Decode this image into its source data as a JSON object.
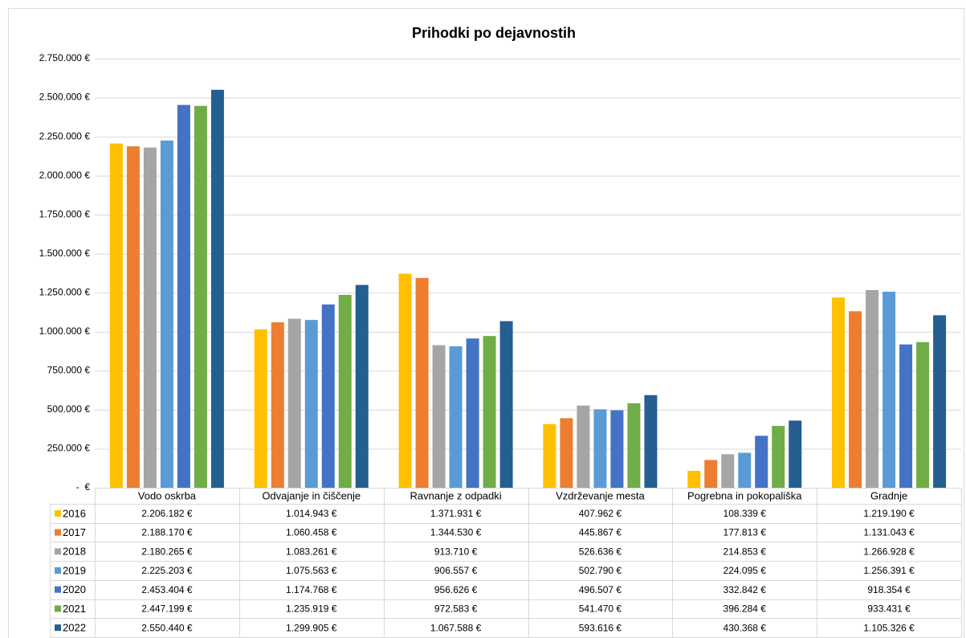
{
  "chart_data": {
    "type": "bar",
    "title": "Prihodki po dejavnostih",
    "categories": [
      "Vodo oskrba",
      "Odvajanje in čiščenje",
      "Ravnanje z odpadki",
      "Vzdrževanje mesta",
      "Pogrebna in pokopališka",
      "Gradnje"
    ],
    "ylim": [
      0,
      2750000
    ],
    "yticks": [
      {
        "value": 0,
        "label": "-  €"
      },
      {
        "value": 250000,
        "label": "250.000 €"
      },
      {
        "value": 500000,
        "label": "500.000 €"
      },
      {
        "value": 750000,
        "label": "750.000 €"
      },
      {
        "value": 1000000,
        "label": "1.000.000 €"
      },
      {
        "value": 1250000,
        "label": "1.250.000 €"
      },
      {
        "value": 1500000,
        "label": "1.500.000 €"
      },
      {
        "value": 1750000,
        "label": "1.750.000 €"
      },
      {
        "value": 2000000,
        "label": "2.000.000 €"
      },
      {
        "value": 2250000,
        "label": "2.250.000 €"
      },
      {
        "value": 2500000,
        "label": "2.500.000 €"
      },
      {
        "value": 2750000,
        "label": "2.750.000 €"
      }
    ],
    "grid": true,
    "series": [
      {
        "name": "2016",
        "color": "#ffc000",
        "values": [
          2206182,
          1014943,
          1371931,
          407962,
          108339,
          1219190
        ],
        "value_labels": [
          "2.206.182 €",
          "1.014.943 €",
          "1.371.931 €",
          "407.962 €",
          "108.339 €",
          "1.219.190 €"
        ]
      },
      {
        "name": "2017",
        "color": "#ed7d31",
        "values": [
          2188170,
          1060458,
          1344530,
          445867,
          177813,
          1131043
        ],
        "value_labels": [
          "2.188.170 €",
          "1.060.458 €",
          "1.344.530 €",
          "445.867 €",
          "177.813 €",
          "1.131.043 €"
        ]
      },
      {
        "name": "2018",
        "color": "#a5a5a5",
        "values": [
          2180265,
          1083261,
          913710,
          526636,
          214853,
          1266928
        ],
        "value_labels": [
          "2.180.265 €",
          "1.083.261 €",
          "913.710 €",
          "526.636 €",
          "214.853 €",
          "1.266.928 €"
        ]
      },
      {
        "name": "2019",
        "color": "#5b9bd5",
        "values": [
          2225203,
          1075563,
          906557,
          502790,
          224095,
          1256391
        ],
        "value_labels": [
          "2.225.203 €",
          "1.075.563 €",
          "906.557 €",
          "502.790 €",
          "224.095 €",
          "1.256.391 €"
        ]
      },
      {
        "name": "2020",
        "color": "#4472c4",
        "values": [
          2453404,
          1174768,
          956626,
          496507,
          332842,
          918354
        ],
        "value_labels": [
          "2.453.404 €",
          "1.174.768 €",
          "956.626 €",
          "496.507 €",
          "332.842 €",
          "918.354 €"
        ]
      },
      {
        "name": "2021",
        "color": "#70ad47",
        "values": [
          2447199,
          1235919,
          972583,
          541470,
          396284,
          933431
        ],
        "value_labels": [
          "2.447.199 €",
          "1.235.919 €",
          "972.583 €",
          "541.470 €",
          "396.284 €",
          "933.431 €"
        ]
      },
      {
        "name": "2022",
        "color": "#255e91",
        "values": [
          2550440,
          1299905,
          1067588,
          593616,
          430368,
          1105326
        ],
        "value_labels": [
          "2.550.440 €",
          "1.299.905 €",
          "1.067.588 €",
          "593.616 €",
          "430.368 €",
          "1.105.326 €"
        ]
      }
    ]
  }
}
